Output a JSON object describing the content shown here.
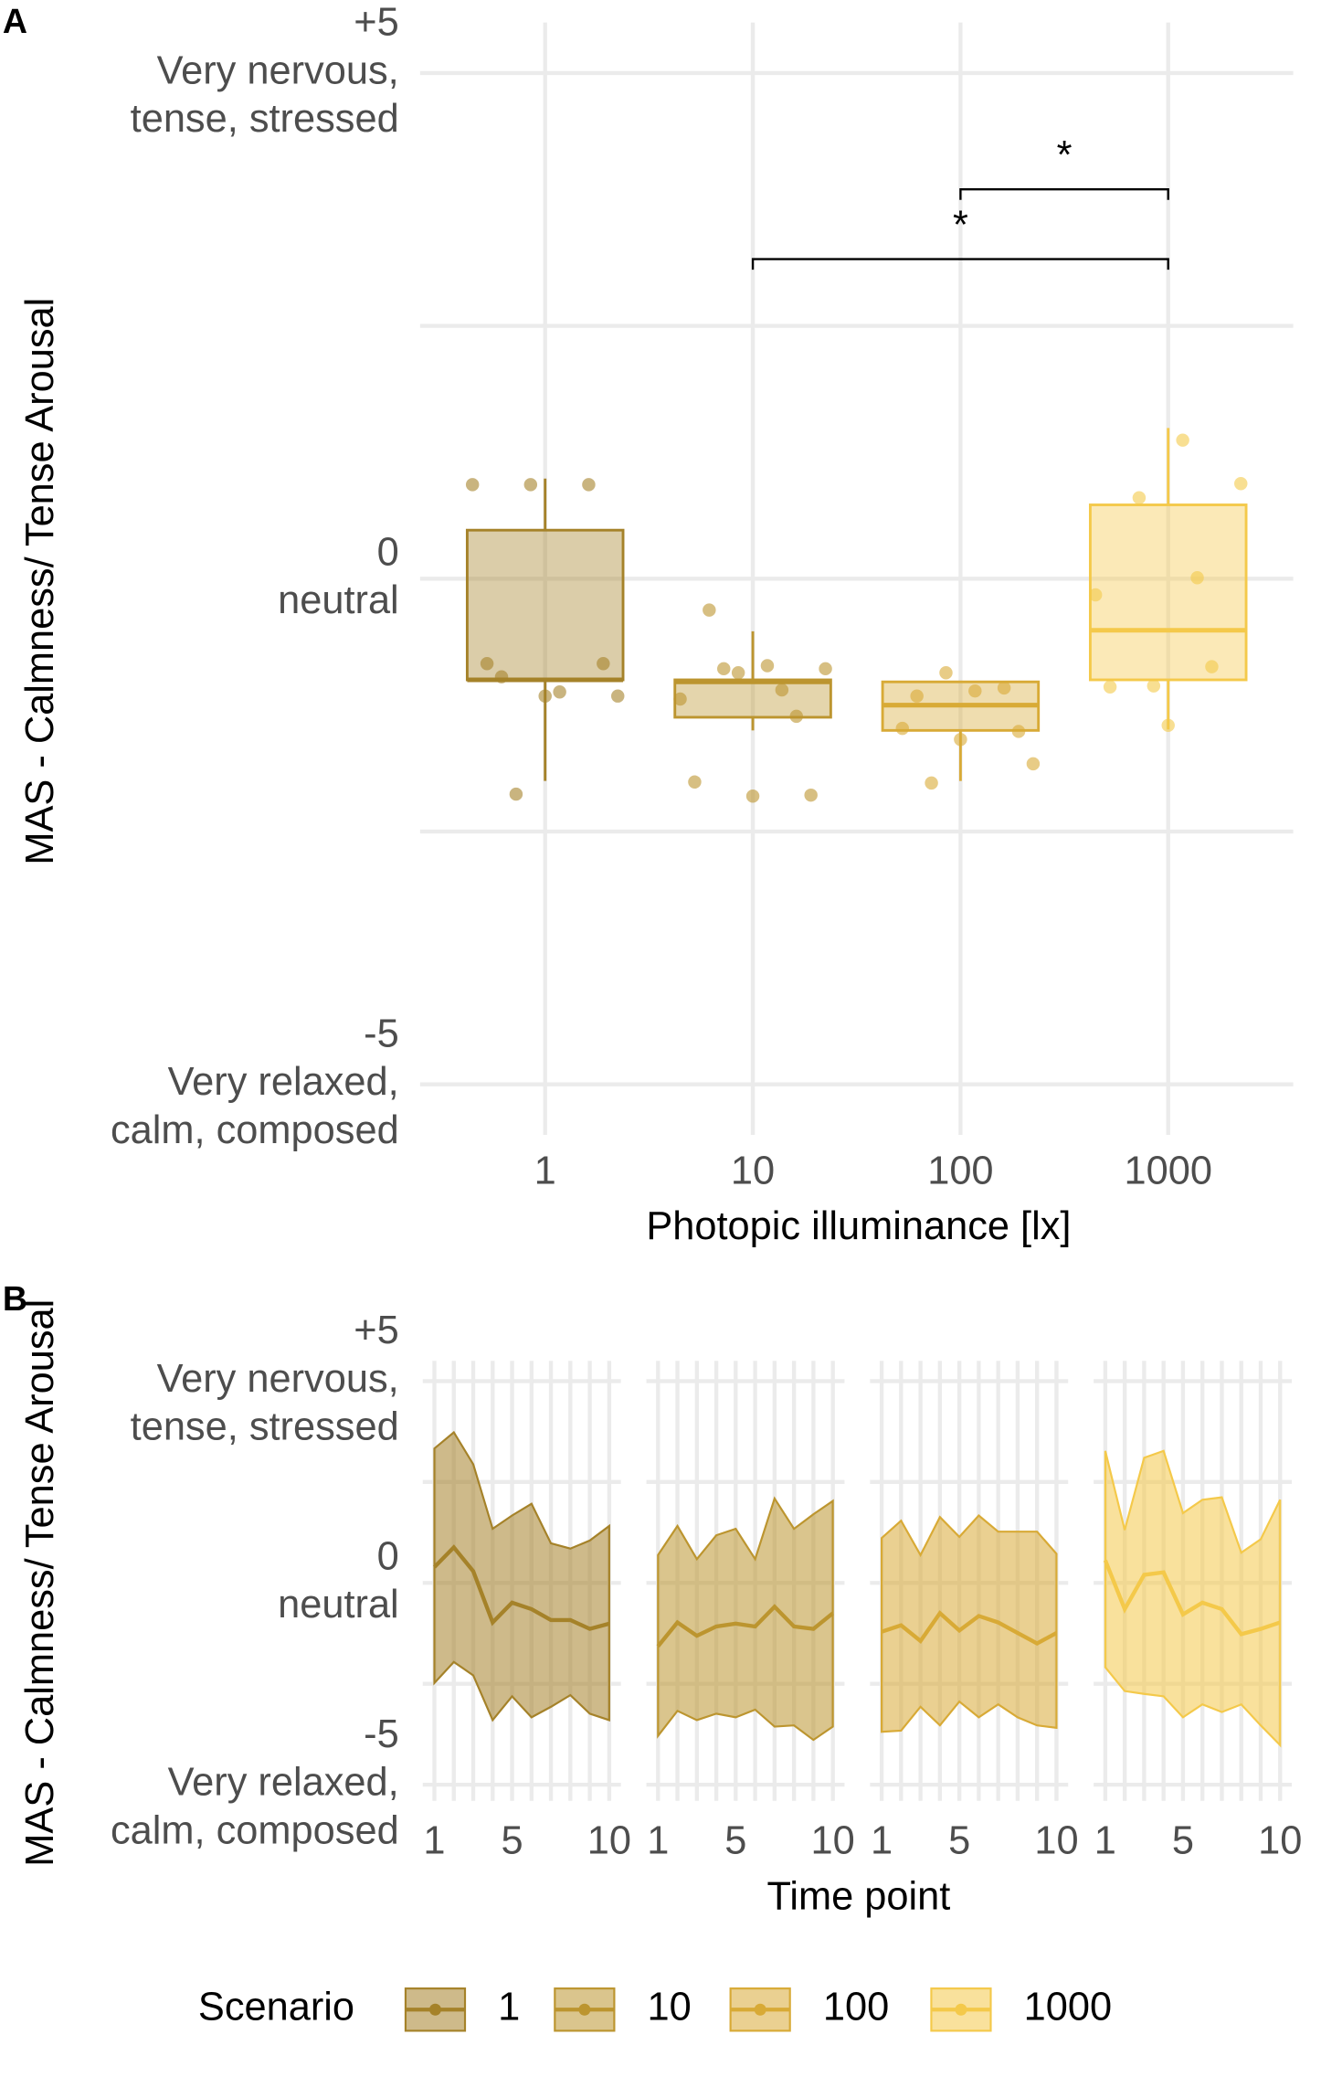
{
  "chart_data": [
    {
      "type": "box",
      "panel": "A",
      "x_label": "Photopic illuminance [lx]",
      "y_label": "MAS - Calmness/ Tense Arousal",
      "x_log": true,
      "xlim": [
        0.25,
        4000
      ],
      "xticks": [
        1,
        10,
        100,
        1000
      ],
      "ylim": [
        -5.5,
        5.5
      ],
      "yticks": [
        {
          "value": -5,
          "label": [
            "-5",
            "Very relaxed,",
            "calm, composed"
          ]
        },
        {
          "value": 0,
          "label": [
            "0",
            "neutral"
          ]
        },
        {
          "value": 5,
          "label": [
            "+5",
            "Very nervous,",
            "tense, stressed"
          ]
        }
      ],
      "minor_yticks": [
        -2.5,
        2.5
      ],
      "grid": true,
      "series": [
        {
          "name": "1",
          "x": 1,
          "color": "#a58229",
          "q1": -1.0,
          "median": -1.0,
          "q3": 0.48,
          "whisker_low": -2.0,
          "whisker_high": 0.99,
          "points": [
            0.93,
            0.93,
            0.93,
            -0.84,
            -1.16,
            -0.84,
            -0.97,
            -1.12,
            -1.16,
            -2.13
          ]
        },
        {
          "name": "10",
          "x": 10,
          "color": "#bc952f",
          "q1": -1.37,
          "median": -1.02,
          "q3": -1.0,
          "whisker_low": -1.5,
          "whisker_high": -0.52,
          "points": [
            -0.31,
            -0.86,
            -0.89,
            -0.89,
            -1.1,
            -1.19,
            -0.93,
            -1.36,
            -2.01,
            -2.15,
            -2.14
          ]
        },
        {
          "name": "100",
          "x": 100,
          "color": "#d8aa36",
          "q1": -1.5,
          "median": -1.25,
          "q3": -1.02,
          "whisker_low": -2.0,
          "whisker_high": -1.02,
          "points": [
            -0.93,
            -1.08,
            -1.48,
            -1.59,
            -1.51,
            -1.16,
            -1.11,
            -1.83,
            -2.02
          ]
        },
        {
          "name": "1000",
          "x": 1000,
          "color": "#f4c94a",
          "q1": -1.0,
          "median": -0.51,
          "q3": 0.73,
          "whisker_low": -1.49,
          "whisker_high": 1.49,
          "points": [
            1.37,
            0.94,
            0.8,
            0.01,
            -0.16,
            -1.06,
            -0.87,
            -1.07,
            -1.45
          ]
        }
      ],
      "annotations": [
        {
          "from": 10,
          "to": 1000,
          "y": 3.16,
          "label": "*"
        },
        {
          "from": 100,
          "to": 1000,
          "y": 3.85,
          "label": "*"
        }
      ]
    },
    {
      "type": "ribbon-facets",
      "panel": "B",
      "x_label": "Time point",
      "y_label": "MAS - Calmness/ Tense Arousal",
      "legend_title": "Scenario",
      "xlim": [
        0.4,
        10.6
      ],
      "xticks": [
        1,
        5,
        10
      ],
      "minor_xticks": [
        2,
        3,
        4,
        6,
        7,
        8,
        9
      ],
      "ylim": [
        -5.4,
        5.5
      ],
      "yticks": [
        {
          "value": -5,
          "label": [
            "-5",
            "Very relaxed,",
            "calm, composed"
          ]
        },
        {
          "value": 0,
          "label": [
            "0",
            "neutral"
          ]
        },
        {
          "value": 5,
          "label": [
            "+5",
            "Very nervous,",
            "tense, stressed"
          ]
        }
      ],
      "minor_yticks": [
        -2.5,
        2.5
      ],
      "grid": true,
      "x": [
        1,
        2,
        3,
        4,
        5,
        6,
        7,
        8,
        9,
        10
      ],
      "series": [
        {
          "name": "1",
          "color": "#a58229",
          "values": [
            0.39,
            0.88,
            0.29,
            -0.98,
            -0.49,
            -0.65,
            -0.92,
            -0.92,
            -1.14,
            -1.01
          ],
          "lower": [
            -2.48,
            -1.96,
            -2.29,
            -3.4,
            -2.81,
            -3.33,
            -3.07,
            -2.78,
            -3.24,
            -3.4
          ],
          "upper": [
            3.33,
            3.73,
            2.94,
            1.34,
            1.67,
            1.96,
            0.98,
            0.85,
            1.05,
            1.41
          ]
        },
        {
          "name": "10",
          "color": "#bc952f",
          "values": [
            -1.57,
            -0.98,
            -1.31,
            -1.08,
            -1.01,
            -1.08,
            -0.59,
            -1.08,
            -1.14,
            -0.75
          ],
          "lower": [
            -3.79,
            -3.17,
            -3.4,
            -3.24,
            -3.33,
            -3.14,
            -3.56,
            -3.53,
            -3.89,
            -3.56
          ],
          "upper": [
            0.69,
            1.41,
            0.59,
            1.18,
            1.34,
            0.59,
            2.09,
            1.34,
            1.7,
            2.03
          ]
        },
        {
          "name": "100",
          "color": "#d8aa36",
          "values": [
            -1.21,
            -1.05,
            -1.44,
            -0.75,
            -1.18,
            -0.82,
            -0.98,
            -1.24,
            -1.5,
            -1.24
          ],
          "lower": [
            -3.69,
            -3.66,
            -3.07,
            -3.53,
            -2.94,
            -3.33,
            -3.01,
            -3.33,
            -3.53,
            -3.59
          ],
          "upper": [
            1.11,
            1.54,
            0.69,
            1.63,
            1.14,
            1.67,
            1.27,
            1.27,
            1.27,
            0.72
          ]
        },
        {
          "name": "1000",
          "color": "#f4c94a",
          "values": [
            0.56,
            -0.65,
            0.2,
            0.26,
            -0.78,
            -0.49,
            -0.65,
            -1.27,
            -1.14,
            -0.98
          ],
          "lower": [
            -2.09,
            -2.68,
            -2.75,
            -2.81,
            -3.33,
            -3.01,
            -3.2,
            -3.01,
            -3.53,
            -4.02
          ],
          "upper": [
            3.27,
            1.31,
            3.1,
            3.27,
            1.73,
            2.06,
            2.12,
            0.75,
            1.08,
            2.06
          ]
        }
      ]
    }
  ]
}
